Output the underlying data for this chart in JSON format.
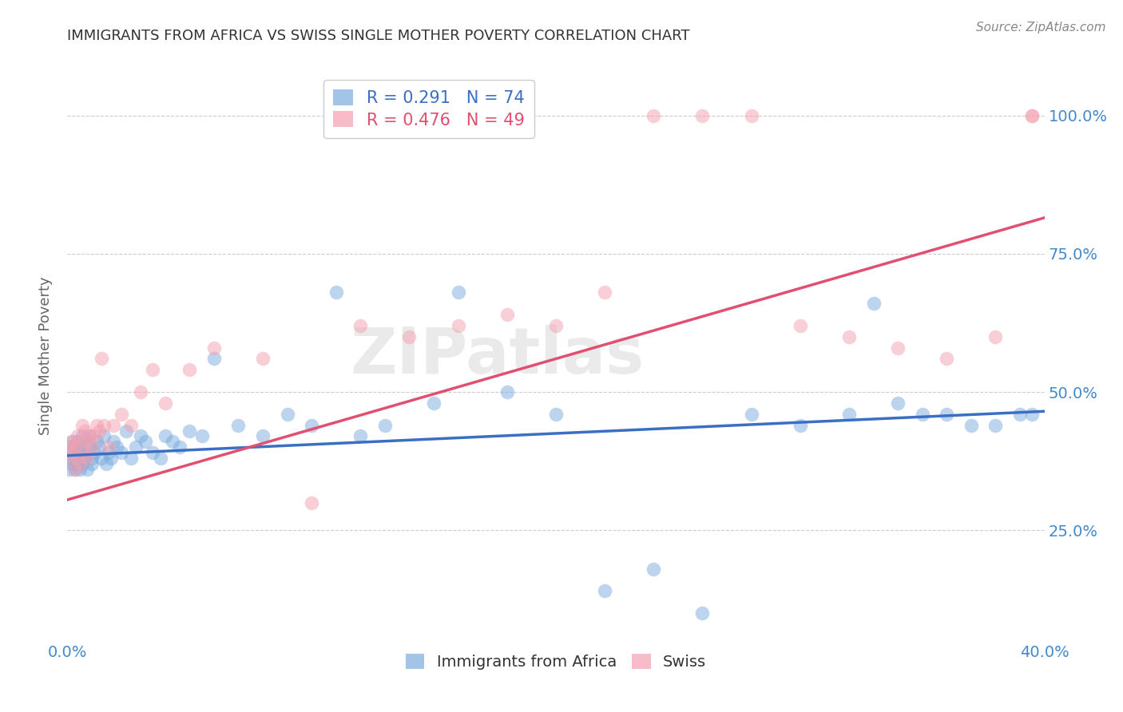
{
  "title": "IMMIGRANTS FROM AFRICA VS SWISS SINGLE MOTHER POVERTY CORRELATION CHART",
  "source": "Source: ZipAtlas.com",
  "ylabel": "Single Mother Poverty",
  "watermark": "ZIPatlas",
  "blue_R": 0.291,
  "blue_N": 74,
  "pink_R": 0.476,
  "pink_N": 49,
  "blue_color": "#7aabde",
  "pink_color": "#f4a0b0",
  "blue_line_color": "#3a6fc4",
  "pink_line_color": "#e05070",
  "bg_color": "#ffffff",
  "grid_color": "#cccccc",
  "title_color": "#333333",
  "axis_label_color": "#4488cc",
  "xmin": 0.0,
  "xmax": 0.4,
  "ymin": 0.05,
  "ymax": 1.08,
  "blue_x": [
    0.001,
    0.001,
    0.001,
    0.002,
    0.002,
    0.002,
    0.003,
    0.003,
    0.003,
    0.004,
    0.004,
    0.004,
    0.005,
    0.005,
    0.005,
    0.006,
    0.006,
    0.007,
    0.007,
    0.008,
    0.008,
    0.009,
    0.009,
    0.01,
    0.01,
    0.011,
    0.012,
    0.013,
    0.014,
    0.015,
    0.016,
    0.017,
    0.018,
    0.019,
    0.02,
    0.022,
    0.024,
    0.026,
    0.028,
    0.03,
    0.032,
    0.035,
    0.038,
    0.04,
    0.043,
    0.046,
    0.05,
    0.055,
    0.06,
    0.07,
    0.08,
    0.09,
    0.1,
    0.11,
    0.12,
    0.13,
    0.15,
    0.16,
    0.18,
    0.2,
    0.22,
    0.24,
    0.26,
    0.28,
    0.3,
    0.32,
    0.33,
    0.34,
    0.35,
    0.36,
    0.37,
    0.38,
    0.39,
    0.395
  ],
  "blue_y": [
    0.38,
    0.4,
    0.36,
    0.39,
    0.37,
    0.41,
    0.36,
    0.4,
    0.38,
    0.37,
    0.41,
    0.39,
    0.38,
    0.36,
    0.4,
    0.42,
    0.37,
    0.39,
    0.38,
    0.41,
    0.36,
    0.4,
    0.42,
    0.38,
    0.37,
    0.39,
    0.41,
    0.4,
    0.38,
    0.42,
    0.37,
    0.39,
    0.38,
    0.41,
    0.4,
    0.39,
    0.43,
    0.38,
    0.4,
    0.42,
    0.41,
    0.39,
    0.38,
    0.42,
    0.41,
    0.4,
    0.43,
    0.42,
    0.56,
    0.44,
    0.42,
    0.46,
    0.44,
    0.68,
    0.42,
    0.44,
    0.48,
    0.68,
    0.5,
    0.46,
    0.14,
    0.18,
    0.1,
    0.46,
    0.44,
    0.46,
    0.66,
    0.48,
    0.46,
    0.46,
    0.44,
    0.44,
    0.46,
    0.46
  ],
  "pink_x": [
    0.001,
    0.001,
    0.002,
    0.002,
    0.003,
    0.003,
    0.004,
    0.004,
    0.005,
    0.005,
    0.006,
    0.007,
    0.007,
    0.008,
    0.008,
    0.009,
    0.01,
    0.011,
    0.012,
    0.013,
    0.014,
    0.015,
    0.017,
    0.019,
    0.022,
    0.026,
    0.03,
    0.035,
    0.04,
    0.05,
    0.06,
    0.08,
    0.1,
    0.12,
    0.14,
    0.16,
    0.18,
    0.2,
    0.22,
    0.24,
    0.26,
    0.28,
    0.3,
    0.32,
    0.34,
    0.36,
    0.38,
    0.395,
    0.395
  ],
  "pink_y": [
    0.38,
    0.4,
    0.39,
    0.41,
    0.4,
    0.36,
    0.42,
    0.38,
    0.41,
    0.37,
    0.44,
    0.39,
    0.43,
    0.41,
    0.38,
    0.42,
    0.4,
    0.42,
    0.44,
    0.43,
    0.56,
    0.44,
    0.4,
    0.44,
    0.46,
    0.44,
    0.5,
    0.54,
    0.48,
    0.54,
    0.58,
    0.56,
    0.3,
    0.62,
    0.6,
    0.62,
    0.64,
    0.62,
    0.68,
    1.0,
    1.0,
    1.0,
    0.62,
    0.6,
    0.58,
    0.56,
    0.6,
    1.0,
    1.0
  ],
  "blue_line_x0": 0.0,
  "blue_line_x1": 0.4,
  "blue_line_y0": 0.385,
  "blue_line_y1": 0.465,
  "pink_line_x0": 0.0,
  "pink_line_x1": 0.4,
  "pink_line_y0": 0.305,
  "pink_line_y1": 0.815
}
